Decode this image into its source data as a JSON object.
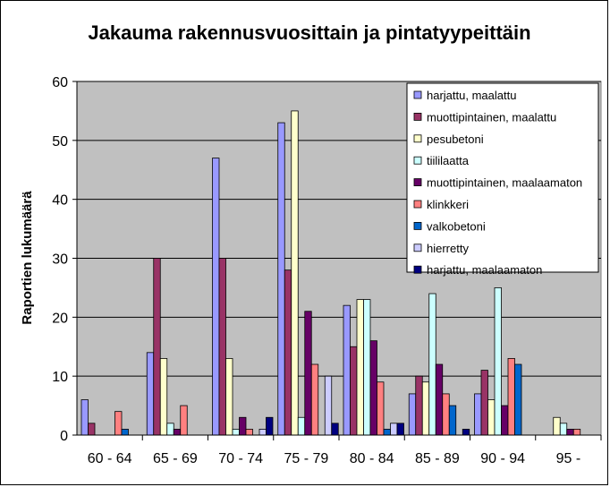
{
  "chart_data": {
    "type": "bar",
    "title": "Jakauma rakennusvuosittain ja pintatyypeittäin",
    "ylabel": "Raportien lukumäärä",
    "xlabel": "",
    "ylim": [
      0,
      60
    ],
    "yticks": [
      0,
      10,
      20,
      30,
      40,
      50,
      60
    ],
    "grid": true,
    "legend_position": "top-right",
    "plot_background": "#C0C0C0",
    "categories": [
      "60 - 64",
      "65 - 69",
      "70 - 74",
      "75 - 79",
      "80 - 84",
      "85 - 89",
      "90 - 94",
      "95 -"
    ],
    "series": [
      {
        "name": "harjattu, maalattu",
        "color": "#9999FF",
        "values": [
          6,
          14,
          47,
          53,
          22,
          7,
          7,
          0
        ]
      },
      {
        "name": "muottipintainen, maalattu",
        "color": "#993366",
        "values": [
          2,
          30,
          30,
          28,
          15,
          10,
          11,
          0
        ]
      },
      {
        "name": "pesubetoni",
        "color": "#FFFFCC",
        "values": [
          0,
          13,
          13,
          55,
          23,
          9,
          6,
          3
        ]
      },
      {
        "name": "tiililaatta",
        "color": "#CCFFFF",
        "values": [
          0,
          2,
          1,
          3,
          23,
          24,
          25,
          2
        ]
      },
      {
        "name": "muottipintainen, maalaamaton",
        "color": "#660066",
        "values": [
          0,
          1,
          3,
          21,
          16,
          12,
          5,
          1
        ]
      },
      {
        "name": "klinkkeri",
        "color": "#FF8080",
        "values": [
          4,
          5,
          1,
          12,
          9,
          7,
          13,
          1
        ]
      },
      {
        "name": "valkobetoni",
        "color": "#0066CC",
        "values": [
          1,
          0,
          0,
          0,
          1,
          5,
          12,
          0
        ]
      },
      {
        "name": "hierretty",
        "color": "#CCCCFF",
        "values": [
          0,
          0,
          1,
          10,
          2,
          0,
          0,
          0
        ]
      },
      {
        "name": "harjattu, maalaamaton",
        "color": "#000080",
        "values": [
          0,
          0,
          3,
          2,
          2,
          1,
          0,
          0
        ]
      }
    ]
  }
}
